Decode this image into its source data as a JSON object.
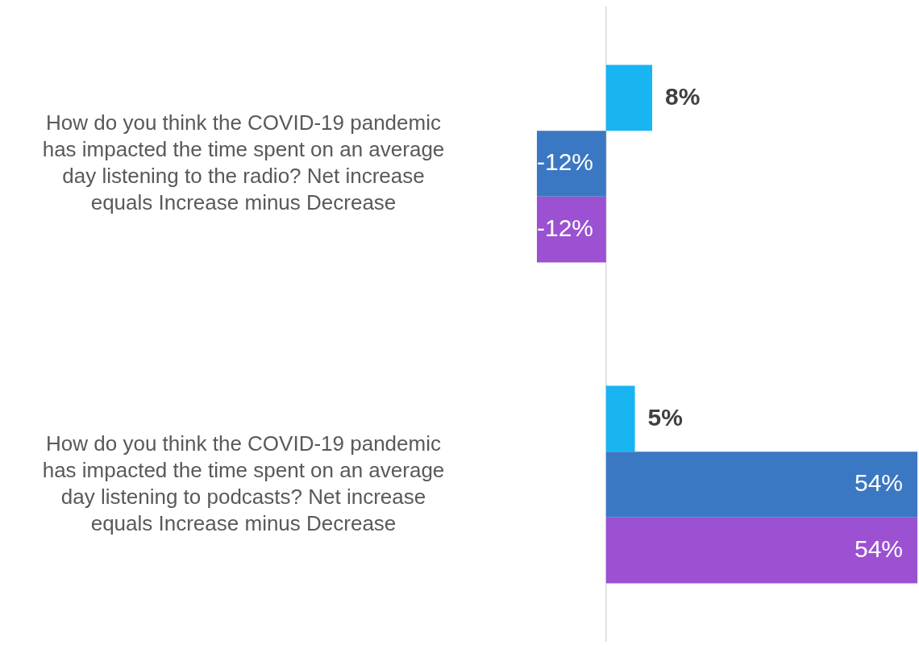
{
  "chart_data": {
    "type": "bar",
    "orientation": "horizontal",
    "categories": [
      "How do you think the COVID-19 pandemic has impacted the time spent on an average day listening to the radio? Net increase equals Increase minus Decrease",
      "How do you think the COVID-19 pandemic has impacted the time spent on an average day listening to podcasts? Net increase equals Increase minus Decrease"
    ],
    "series": [
      {
        "color": "#19b4f2",
        "values": [
          8,
          5
        ],
        "value_labels": [
          "8%",
          "5%"
        ]
      },
      {
        "color": "#3b78c3",
        "values": [
          -12,
          54
        ],
        "value_labels": [
          "-12%",
          "54%"
        ]
      },
      {
        "color": "#9b51d1",
        "values": [
          -12,
          54
        ],
        "value_labels": [
          "-12%",
          "54%"
        ]
      }
    ],
    "tick_labels": "y",
    "grid": false,
    "legend": false
  }
}
